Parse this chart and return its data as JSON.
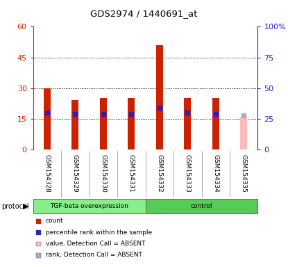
{
  "title": "GDS2974 / 1440691_at",
  "samples": [
    "GSM154328",
    "GSM154329",
    "GSM154330",
    "GSM154331",
    "GSM154332",
    "GSM154333",
    "GSM154334",
    "GSM154335"
  ],
  "count_values": [
    30,
    24,
    25,
    25,
    51,
    25,
    25,
    null
  ],
  "rank_values": [
    30,
    29,
    29,
    29,
    34,
    30,
    29,
    null
  ],
  "absent_value": 16,
  "absent_rank": 28,
  "left_ylim": [
    0,
    60
  ],
  "right_ylim": [
    0,
    100
  ],
  "left_yticks": [
    0,
    15,
    30,
    45,
    60
  ],
  "right_yticks": [
    0,
    25,
    50,
    75,
    100
  ],
  "right_yticklabels": [
    "0",
    "25",
    "50",
    "75",
    "100%"
  ],
  "bar_color_present": "#cc2200",
  "bar_color_absent": "#ffbbbb",
  "rank_color_present": "#2222cc",
  "rank_color_absent": "#aaaacc",
  "bar_width": 0.25,
  "group1_label": "TGF-beta overexpression",
  "group2_label": "control",
  "group1_color": "#88ee88",
  "group2_color": "#55cc55",
  "protocol_label": "protocol",
  "legend_items": [
    {
      "label": "count",
      "color": "#cc2200"
    },
    {
      "label": "percentile rank within the sample",
      "color": "#2222cc"
    },
    {
      "label": "value, Detection Call = ABSENT",
      "color": "#ffbbbb"
    },
    {
      "label": "rank, Detection Call = ABSENT",
      "color": "#aaaacc"
    }
  ],
  "bg_color": "#d8d8d8",
  "dotted_lines": [
    15,
    30,
    45
  ]
}
